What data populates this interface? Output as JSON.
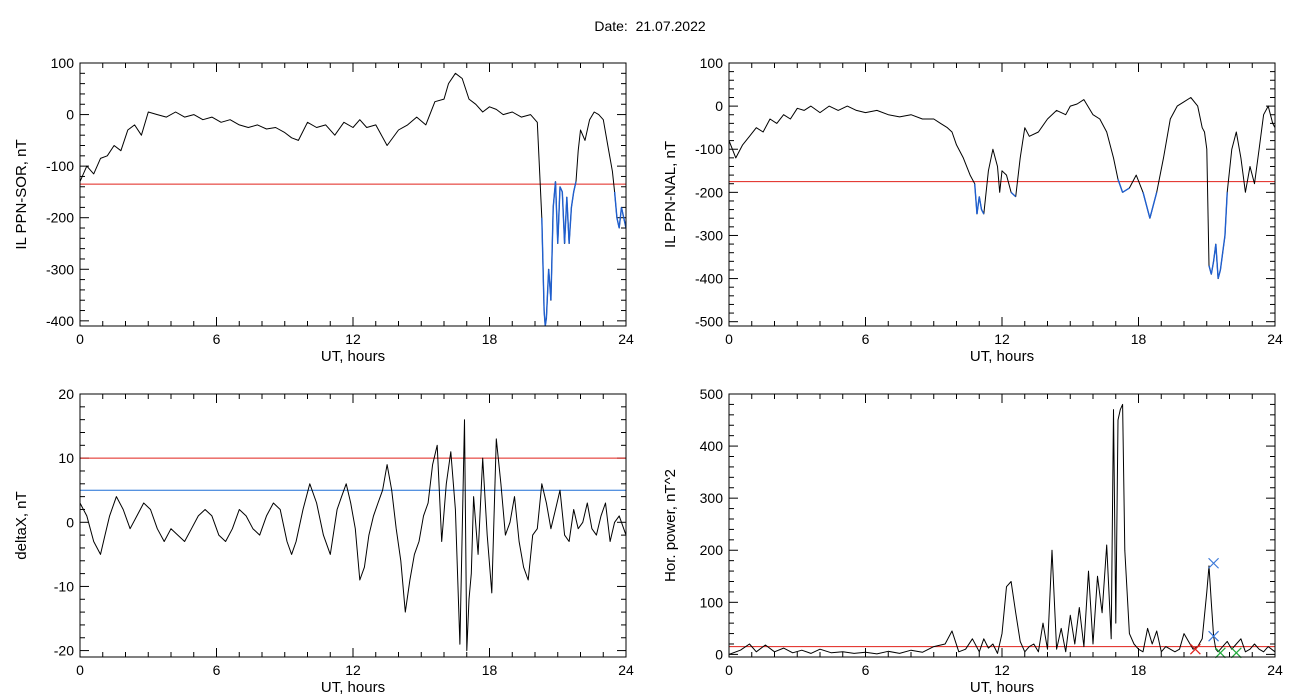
{
  "figure": {
    "title_prefix": "Date:",
    "title_date": "21.07.2022"
  },
  "colors": {
    "line": "#000000",
    "red_threshold": "#e0201a",
    "blue_threshold": "#1f6fd6",
    "activity_blue": "#1f5fcf",
    "marker_blue": "#3a78d8",
    "marker_red": "#e0201a",
    "marker_green": "#1faa3a"
  },
  "chart_data": [
    {
      "id": "sor",
      "type": "line",
      "xlabel": "UT, hours",
      "ylabel": "IL PPN-SOR, nT",
      "xlim": [
        0,
        24
      ],
      "ylim": [
        -410,
        100
      ],
      "xticks": [
        0,
        6,
        12,
        18,
        24
      ],
      "yticks": [
        100,
        0,
        -100,
        -200,
        -300,
        -400
      ],
      "hlines": [
        {
          "y": -135,
          "color": "red"
        }
      ],
      "highlight": {
        "y_below": -110,
        "color": "activity_blue"
      },
      "x": [
        0,
        0.3,
        0.6,
        0.9,
        1.2,
        1.5,
        1.8,
        2.1,
        2.4,
        2.7,
        3.0,
        3.4,
        3.8,
        4.2,
        4.6,
        5.0,
        5.4,
        5.8,
        6.2,
        6.6,
        7.0,
        7.4,
        7.8,
        8.2,
        8.6,
        9.0,
        9.3,
        9.6,
        10.0,
        10.4,
        10.8,
        11.2,
        11.6,
        12.0,
        12.3,
        12.6,
        13.0,
        13.5,
        14.0,
        14.4,
        14.8,
        15.2,
        15.6,
        16.0,
        16.2,
        16.5,
        16.8,
        17.1,
        17.4,
        17.7,
        18.0,
        18.3,
        18.6,
        19.0,
        19.4,
        19.8,
        20.1,
        20.3,
        20.4,
        20.45,
        20.5,
        20.6,
        20.7,
        20.8,
        20.9,
        21.0,
        21.1,
        21.2,
        21.3,
        21.4,
        21.5,
        21.6,
        21.7,
        21.8,
        21.9,
        22.0,
        22.2,
        22.4,
        22.6,
        22.8,
        23.0,
        23.2,
        23.4,
        23.5,
        23.6,
        23.7,
        23.8,
        23.9,
        24.0
      ],
      "y": [
        -130,
        -100,
        -115,
        -85,
        -80,
        -60,
        -70,
        -30,
        -20,
        -40,
        5,
        0,
        -5,
        5,
        -5,
        0,
        -10,
        -5,
        -15,
        -10,
        -20,
        -25,
        -20,
        -28,
        -25,
        -35,
        -45,
        -50,
        -15,
        -25,
        -20,
        -40,
        -15,
        -25,
        -10,
        -25,
        -20,
        -60,
        -30,
        -20,
        -5,
        -20,
        25,
        30,
        60,
        80,
        70,
        30,
        20,
        5,
        15,
        10,
        0,
        5,
        -5,
        0,
        -15,
        -200,
        -380,
        -410,
        -395,
        -300,
        -360,
        -180,
        -130,
        -250,
        -140,
        -150,
        -250,
        -160,
        -250,
        -180,
        -150,
        -130,
        -70,
        -30,
        -50,
        -10,
        5,
        0,
        -10,
        -60,
        -110,
        -150,
        -200,
        -220,
        -180,
        -200,
        -220
      ]
    },
    {
      "id": "nal",
      "type": "line",
      "xlabel": "UT, hours",
      "ylabel": "IL PPN-NAL, nT",
      "xlim": [
        0,
        24
      ],
      "ylim": [
        -510,
        100
      ],
      "xticks": [
        0,
        6,
        12,
        18,
        24
      ],
      "yticks": [
        100,
        0,
        -100,
        -200,
        -300,
        -400,
        -500
      ],
      "hlines": [
        {
          "y": -175,
          "color": "red"
        }
      ],
      "highlight": {
        "y_below": -160,
        "color": "activity_blue"
      },
      "x": [
        0,
        0.3,
        0.6,
        0.9,
        1.2,
        1.5,
        1.8,
        2.1,
        2.4,
        2.7,
        3.0,
        3.3,
        3.6,
        4.0,
        4.4,
        4.8,
        5.2,
        5.6,
        6.0,
        6.5,
        7.0,
        7.5,
        8.0,
        8.5,
        9.0,
        9.3,
        9.6,
        9.8,
        10.0,
        10.3,
        10.6,
        10.8,
        10.9,
        11.0,
        11.1,
        11.2,
        11.4,
        11.6,
        11.8,
        11.9,
        12.0,
        12.2,
        12.4,
        12.6,
        12.8,
        13.0,
        13.2,
        13.6,
        14.0,
        14.4,
        14.8,
        15.0,
        15.3,
        15.6,
        16.0,
        16.3,
        16.6,
        16.9,
        17.1,
        17.3,
        17.6,
        17.9,
        18.2,
        18.5,
        18.8,
        19.1,
        19.4,
        19.7,
        20.0,
        20.3,
        20.6,
        20.8,
        20.9,
        21.0,
        21.1,
        21.2,
        21.3,
        21.4,
        21.5,
        21.6,
        21.7,
        21.8,
        21.9,
        22.0,
        22.1,
        22.3,
        22.5,
        22.7,
        22.9,
        23.1,
        23.3,
        23.5,
        23.7,
        23.9,
        24.0
      ],
      "y": [
        -80,
        -120,
        -90,
        -70,
        -50,
        -60,
        -30,
        -40,
        -20,
        -30,
        -5,
        -10,
        0,
        -15,
        0,
        -10,
        0,
        -10,
        -15,
        -10,
        -20,
        -25,
        -20,
        -30,
        -30,
        -40,
        -50,
        -60,
        -90,
        -120,
        -160,
        -180,
        -250,
        -210,
        -240,
        -250,
        -150,
        -100,
        -140,
        -200,
        -150,
        -160,
        -200,
        -210,
        -120,
        -50,
        -70,
        -60,
        -30,
        -10,
        -20,
        0,
        5,
        15,
        -20,
        -30,
        -60,
        -120,
        -170,
        -200,
        -190,
        -160,
        -200,
        -260,
        -200,
        -120,
        -30,
        0,
        10,
        20,
        0,
        -50,
        -60,
        -100,
        -370,
        -390,
        -360,
        -320,
        -400,
        -380,
        -340,
        -300,
        -200,
        -150,
        -100,
        -60,
        -120,
        -200,
        -140,
        -180,
        -100,
        -20,
        0,
        -40,
        -50
      ]
    },
    {
      "id": "deltax",
      "type": "line",
      "xlabel": "UT, hours",
      "ylabel": "deltaX, nT",
      "xlim": [
        0,
        24
      ],
      "ylim": [
        -21,
        20
      ],
      "xticks": [
        0,
        6,
        12,
        18,
        24
      ],
      "yticks": [
        20,
        10,
        0,
        -10,
        -20
      ],
      "hlines": [
        {
          "y": 10,
          "color": "red"
        },
        {
          "y": 5,
          "color": "blue"
        }
      ],
      "x": [
        0,
        0.3,
        0.6,
        0.9,
        1.1,
        1.3,
        1.6,
        1.9,
        2.2,
        2.5,
        2.8,
        3.1,
        3.4,
        3.7,
        4.0,
        4.3,
        4.6,
        4.9,
        5.2,
        5.5,
        5.8,
        6.1,
        6.4,
        6.7,
        7.0,
        7.3,
        7.6,
        7.9,
        8.2,
        8.5,
        8.8,
        9.1,
        9.3,
        9.5,
        9.8,
        10.1,
        10.4,
        10.7,
        11.0,
        11.3,
        11.5,
        11.7,
        11.9,
        12.1,
        12.3,
        12.5,
        12.7,
        12.9,
        13.1,
        13.3,
        13.5,
        13.7,
        13.9,
        14.1,
        14.3,
        14.5,
        14.7,
        14.9,
        15.1,
        15.3,
        15.5,
        15.7,
        15.9,
        16.1,
        16.3,
        16.5,
        16.7,
        16.9,
        17.0,
        17.1,
        17.2,
        17.3,
        17.5,
        17.7,
        17.9,
        18.1,
        18.3,
        18.5,
        18.7,
        18.9,
        19.1,
        19.3,
        19.5,
        19.7,
        19.9,
        20.1,
        20.3,
        20.5,
        20.7,
        20.9,
        21.1,
        21.3,
        21.5,
        21.7,
        21.9,
        22.1,
        22.3,
        22.5,
        22.7,
        22.9,
        23.1,
        23.3,
        23.5,
        23.7,
        24.0
      ],
      "y": [
        3,
        1,
        -3,
        -5,
        -2,
        1,
        4,
        2,
        -1,
        1,
        3,
        2,
        -1,
        -3,
        -1,
        -2,
        -3,
        -1,
        1,
        2,
        1,
        -2,
        -3,
        -1,
        2,
        1,
        -1,
        -2,
        1,
        3,
        2,
        -3,
        -5,
        -3,
        2,
        6,
        3,
        -2,
        -5,
        2,
        4,
        6,
        3,
        -1,
        -9,
        -7,
        -2,
        1,
        3,
        5,
        9,
        5,
        -1,
        -6,
        -14,
        -9,
        -5,
        -3,
        1,
        3,
        9,
        12,
        -3,
        6,
        11,
        2,
        -19,
        16,
        -20,
        -12,
        -8,
        4,
        -5,
        10,
        -2,
        -11,
        13,
        6,
        -2,
        0,
        4,
        -3,
        -7,
        -9,
        -2,
        -1,
        6,
        3,
        -1,
        2,
        5,
        -2,
        -3,
        2,
        -1,
        0,
        3,
        -1,
        -2,
        1,
        3,
        -3,
        0,
        1,
        -2
      ]
    },
    {
      "id": "power",
      "type": "line",
      "xlabel": "UT, hours",
      "ylabel": "Hor. power, nT^2",
      "xlim": [
        0,
        24
      ],
      "ylim": [
        -5,
        500
      ],
      "xticks": [
        0,
        6,
        12,
        18,
        24
      ],
      "yticks": [
        500,
        400,
        300,
        200,
        100,
        0
      ],
      "hlines": [
        {
          "y": 15,
          "color": "red"
        }
      ],
      "markers": [
        {
          "x": 21.3,
          "y": 175,
          "color": "marker_blue",
          "shape": "x"
        },
        {
          "x": 21.3,
          "y": 35,
          "color": "marker_blue",
          "shape": "x"
        },
        {
          "x": 20.5,
          "y": 10,
          "color": "marker_red",
          "shape": "x"
        },
        {
          "x": 21.6,
          "y": 3,
          "color": "marker_green",
          "shape": "x"
        },
        {
          "x": 22.3,
          "y": 3,
          "color": "marker_green",
          "shape": "x"
        }
      ],
      "x": [
        0,
        0.5,
        0.9,
        1.2,
        1.6,
        2.0,
        2.4,
        2.8,
        3.2,
        3.6,
        4.0,
        4.5,
        5.0,
        5.5,
        6.0,
        6.5,
        7.0,
        7.5,
        8.0,
        8.5,
        9.0,
        9.5,
        9.8,
        10.1,
        10.4,
        10.7,
        11.0,
        11.2,
        11.4,
        11.6,
        11.8,
        12.0,
        12.2,
        12.4,
        12.6,
        12.8,
        13.0,
        13.2,
        13.4,
        13.6,
        13.8,
        14.0,
        14.2,
        14.4,
        14.6,
        14.8,
        15.0,
        15.2,
        15.4,
        15.6,
        15.8,
        16.0,
        16.2,
        16.4,
        16.6,
        16.8,
        16.9,
        17.0,
        17.1,
        17.2,
        17.3,
        17.4,
        17.5,
        17.6,
        17.8,
        18.0,
        18.2,
        18.4,
        18.6,
        18.8,
        19.0,
        19.2,
        19.4,
        19.6,
        19.8,
        20.0,
        20.2,
        20.4,
        20.6,
        20.8,
        21.0,
        21.1,
        21.2,
        21.3,
        21.4,
        21.5,
        21.7,
        21.9,
        22.1,
        22.3,
        22.5,
        22.7,
        22.9,
        23.1,
        23.3,
        23.5,
        23.7,
        24.0
      ],
      "y": [
        0,
        8,
        20,
        5,
        18,
        5,
        12,
        3,
        8,
        2,
        10,
        3,
        5,
        2,
        4,
        1,
        6,
        2,
        8,
        4,
        15,
        20,
        45,
        5,
        10,
        30,
        5,
        30,
        12,
        20,
        2,
        40,
        130,
        140,
        80,
        25,
        5,
        15,
        20,
        5,
        60,
        10,
        200,
        10,
        50,
        5,
        75,
        20,
        90,
        15,
        160,
        20,
        150,
        80,
        210,
        30,
        470,
        60,
        450,
        470,
        480,
        200,
        120,
        40,
        20,
        10,
        5,
        50,
        20,
        45,
        5,
        15,
        10,
        5,
        10,
        40,
        25,
        10,
        15,
        30,
        120,
        170,
        100,
        35,
        10,
        5,
        15,
        25,
        10,
        20,
        30,
        5,
        10,
        20,
        10,
        5,
        15,
        5
      ]
    }
  ]
}
